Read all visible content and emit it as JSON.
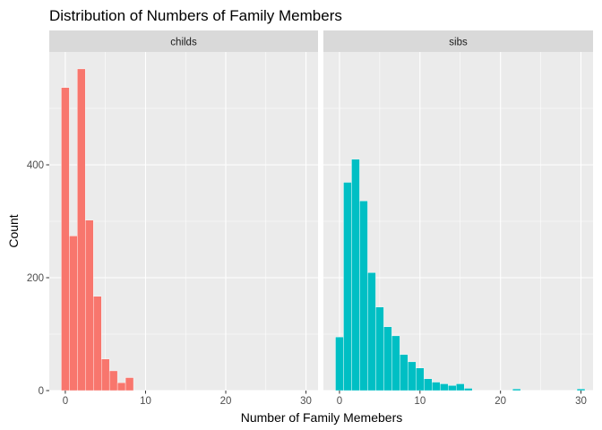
{
  "chart_data": {
    "type": "bar",
    "title": "Distribution of Numbers of Family Members",
    "xlabel": "Number of Family Memebers",
    "ylabel": "Count",
    "xlim": [
      -2,
      31.5
    ],
    "ylim": [
      0,
      600
    ],
    "x_ticks": [
      0,
      10,
      20,
      30
    ],
    "y_ticks": [
      0,
      200,
      400
    ],
    "grid": true,
    "legend": "none",
    "bin_width": 1,
    "panels": [
      {
        "label": "childs",
        "color": "#F8766D",
        "x": [
          0,
          1,
          2,
          3,
          4,
          5,
          6,
          7,
          8
        ],
        "values": [
          537,
          274,
          570,
          302,
          167,
          56,
          35,
          14,
          23
        ]
      },
      {
        "label": "sibs",
        "color": "#00BFC4",
        "x": [
          0,
          1,
          2,
          3,
          4,
          5,
          6,
          7,
          8,
          9,
          10,
          11,
          12,
          13,
          14,
          15,
          16,
          17,
          18,
          19,
          20,
          21,
          22,
          23,
          24,
          25,
          26,
          27,
          28,
          29,
          30
        ],
        "values": [
          95,
          369,
          410,
          336,
          209,
          148,
          113,
          97,
          64,
          51,
          40,
          21,
          15,
          12,
          9,
          12,
          4,
          0,
          0,
          0,
          0,
          0,
          3,
          0,
          0,
          0,
          0,
          0,
          0,
          0,
          3
        ]
      }
    ]
  }
}
